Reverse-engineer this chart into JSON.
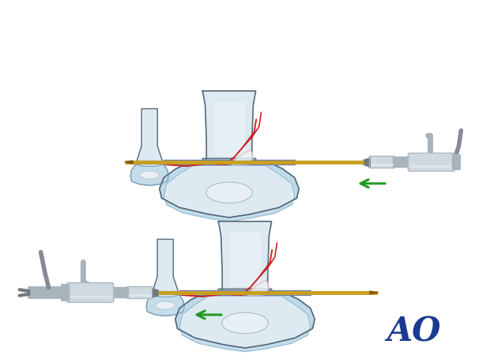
{
  "bg_color": "#ffffff",
  "ao_color": "#1a3a8f",
  "bone_fill": "#ddeaf2",
  "bone_outline": "#5a6a78",
  "cartilage_fill": "#b8d8e8",
  "cartilage_outline": "#7a9ab8",
  "growth_plate_fill": "#8899cc",
  "medullary_fill": "#e8f0f6",
  "medullary_outline": "#aabbc8",
  "fracture_color": "#cc2222",
  "fragment_fill": "#eef2f6",
  "fragment_outline": "#cc9999",
  "kwire_color": "#c8a020",
  "kwire_dark": "#806010",
  "drill_light": "#d0d8e0",
  "drill_mid": "#a8b4bc",
  "drill_dark": "#707880",
  "drill_shine": "#e8eef2",
  "arrow_color": "#229922",
  "cable_color": "#888898"
}
